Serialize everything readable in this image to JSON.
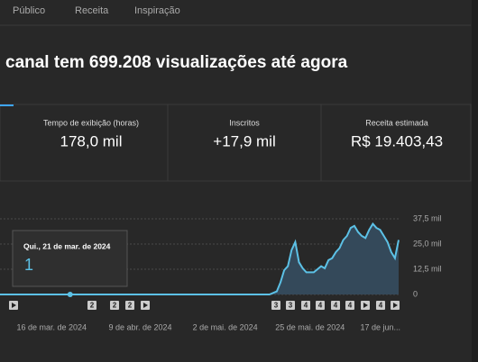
{
  "tabs": [
    "Público",
    "Receita",
    "Inspiração"
  ],
  "headline": "canal tem 699.208 visualizações até agora",
  "metrics": [
    {
      "label": "Tempo de exibição (horas)",
      "value": "178,0 mil"
    },
    {
      "label": "Inscritos",
      "value": "+17,9 mil"
    },
    {
      "label": "Receita estimada",
      "value": "R$ 19.403,43"
    }
  ],
  "markers": [
    "2",
    "2",
    "2",
    "3",
    "3",
    "4",
    "4",
    "4",
    "4",
    "4"
  ],
  "chart_data": {
    "type": "line",
    "color": "#5cc1e6",
    "fill": "#34495a",
    "grid": true,
    "tooltip": "Qui., 21 de mar. de 2024",
    "x": [
      "2024-03-02",
      "2024-03-21",
      "2024-05-14",
      "2024-05-16",
      "2024-05-17",
      "2024-05-18",
      "2024-05-19",
      "2024-05-20",
      "2024-05-21",
      "2024-05-22",
      "2024-05-23",
      "2024-05-24",
      "2024-05-26",
      "2024-05-27",
      "2024-05-28",
      "2024-05-29",
      "2024-05-30",
      "2024-05-31",
      "2024-06-01",
      "2024-06-02",
      "2024-06-03",
      "2024-06-04",
      "2024-06-05",
      "2024-06-06",
      "2024-06-07",
      "2024-06-08",
      "2024-06-09",
      "2024-06-10",
      "2024-06-11",
      "2024-06-12",
      "2024-06-13",
      "2024-06-14",
      "2024-06-15",
      "2024-06-16",
      "2024-06-17",
      "2024-06-18"
    ],
    "values": [
      0,
      1,
      0,
      1500,
      6000,
      12000,
      14000,
      22000,
      26000,
      16000,
      13000,
      11000,
      11000,
      12500,
      14000,
      13000,
      17000,
      18000,
      21000,
      23000,
      27000,
      29000,
      33000,
      34000,
      31000,
      29000,
      28000,
      32000,
      35000,
      33000,
      32000,
      29000,
      26000,
      21000,
      18000,
      27000
    ],
    "xlim": [
      "2024-03-02",
      "2024-06-18"
    ],
    "xticks": [
      {
        "value": "2024-03-16",
        "label": "16 de mar. de 2024"
      },
      {
        "value": "2024-04-09",
        "label": "9 de abr. de 2024"
      },
      {
        "value": "2024-05-02",
        "label": "2 de mai. de 2024"
      },
      {
        "value": "2024-05-25",
        "label": "25 de mai. de 2024"
      },
      {
        "value": "2024-06-17",
        "label": "17 de jun..."
      }
    ],
    "ylim": [
      0,
      37500
    ],
    "yticks": [
      0,
      {
        "value": 12500,
        "label": "12,5 mil"
      },
      {
        "value": 25000,
        "label": "25,0 mil"
      },
      {
        "value": 37500,
        "label": "37,5 mil"
      }
    ]
  }
}
